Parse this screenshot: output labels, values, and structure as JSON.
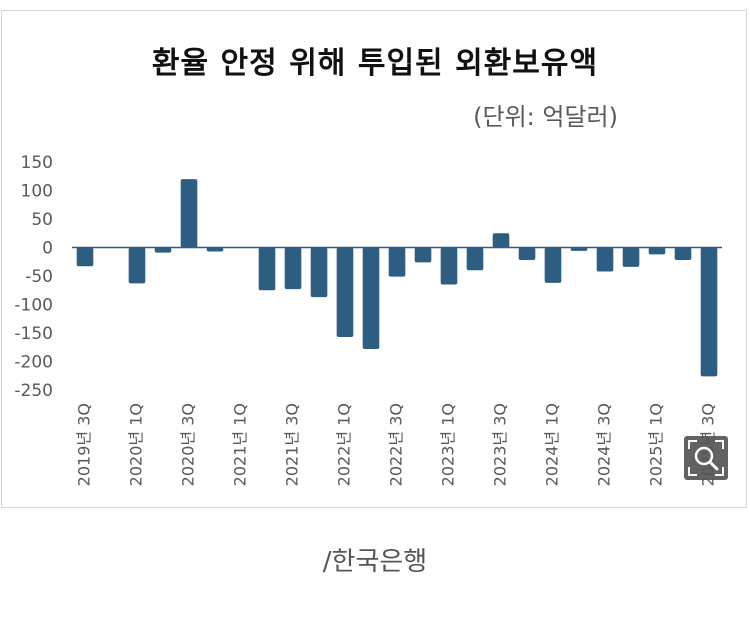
{
  "chart_data": {
    "type": "bar",
    "title": "환율 안정 위해 투입된 외환보유액",
    "subtitle": "(단위: 억달러)",
    "categories": [
      "2019년 3Q",
      "2019년 4Q",
      "2020년 1Q",
      "2020년 2Q",
      "2020년 3Q",
      "2020년 4Q",
      "2021년 1Q",
      "2021년 2Q",
      "2021년 3Q",
      "2021년 4Q",
      "2022년 1Q",
      "2022년 2Q",
      "2022년 3Q",
      "2022년 4Q",
      "2023년 1Q",
      "2023년 2Q",
      "2023년 3Q",
      "2023년 4Q",
      "2024년 1Q",
      "2024년 2Q",
      "2024년 3Q",
      "2024년 4Q",
      "2025년 1Q",
      "2025년 2Q",
      "2025년 3Q"
    ],
    "visible_tick_labels": [
      "2019년 3Q",
      "2020년 1Q",
      "2020년 3Q",
      "2021년 1Q",
      "2021년 3Q",
      "2022년 1Q",
      "2022년 3Q",
      "2023년 1Q",
      "2023년 3Q",
      "2024년 1Q",
      "2024년 3Q",
      "2025년 1Q",
      "2025년 3Q"
    ],
    "values": [
      -33,
      0,
      -63,
      -9,
      120,
      -7,
      0,
      -75,
      -73,
      -87,
      -157,
      -178,
      -51,
      -26,
      -65,
      -40,
      25,
      -22,
      -62,
      -6,
      -42,
      -34,
      -12,
      -22,
      -226
    ],
    "ylim": [
      -250,
      150
    ],
    "yticks": [
      150,
      100,
      50,
      0,
      -50,
      -100,
      -150,
      -200,
      -250
    ],
    "grid": false,
    "legend": "none",
    "bar_color": "#2e5d82",
    "xlabel": "",
    "ylabel": ""
  },
  "source": "/한국은행",
  "zoom_icon": "zoom-in-icon"
}
